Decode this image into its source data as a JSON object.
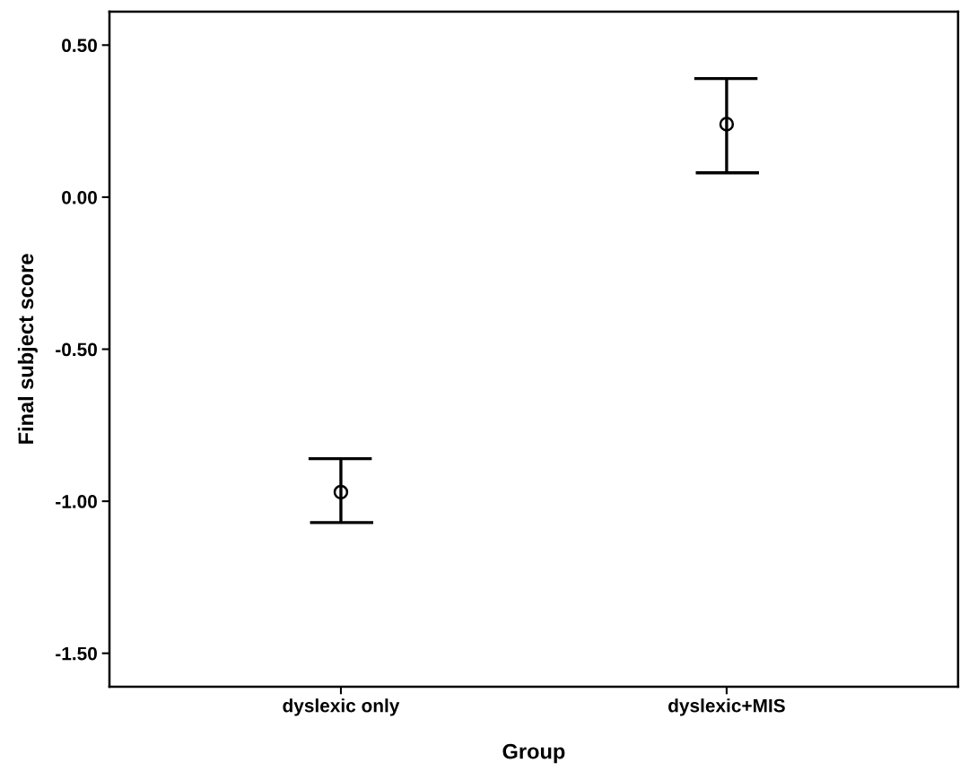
{
  "chart_data": {
    "type": "scatter",
    "xlabel": "Group",
    "ylabel": "Final subject score",
    "categories": [
      "dyslexic only",
      "dyslexic+MIS"
    ],
    "series": [
      {
        "color": "#000000",
        "values": [
          -0.97,
          0.24
        ],
        "errors": [
          [
            -1.07,
            -0.86
          ],
          [
            0.08,
            0.39
          ]
        ]
      }
    ],
    "marker": "circle",
    "ylim": [
      -1.61,
      0.61
    ],
    "yticks": [
      {
        "value": 0.5,
        "label": "0.50"
      },
      {
        "value": 0,
        "label": "0.00"
      },
      {
        "value": -0.5,
        "label": "-0.50"
      },
      {
        "value": -1,
        "label": "-1.00"
      },
      {
        "value": -1.5,
        "label": "-1.50"
      }
    ],
    "grid": false,
    "legend": false
  }
}
